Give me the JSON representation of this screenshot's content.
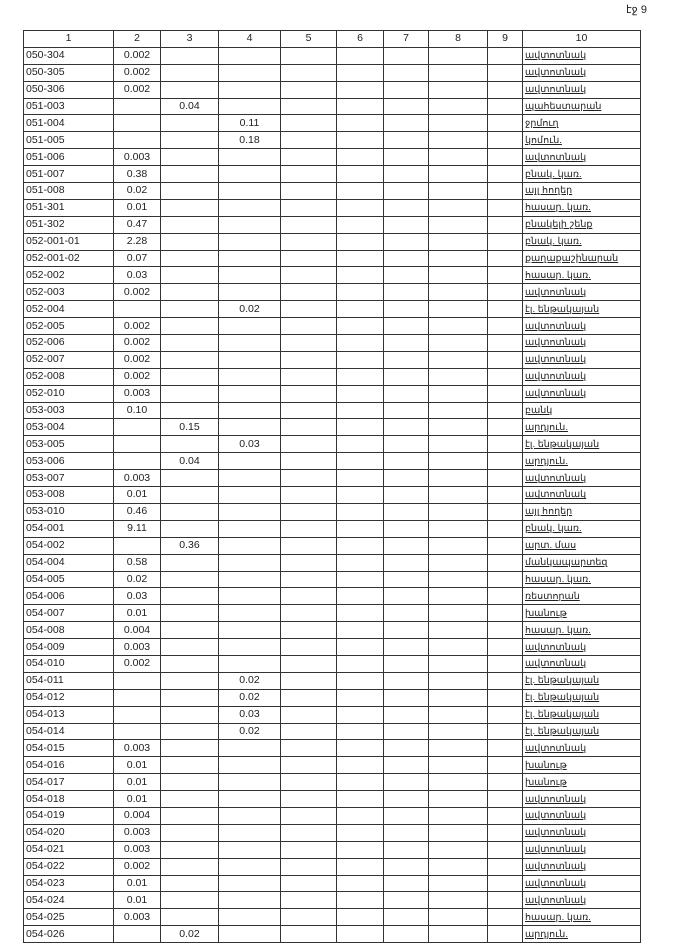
{
  "page_label": "էջ 9",
  "headers": [
    "1",
    "2",
    "3",
    "4",
    "5",
    "6",
    "7",
    "8",
    "9",
    "10"
  ],
  "rows": [
    {
      "code": "050-304",
      "c2": "0.002",
      "c3": "",
      "c4": "",
      "c10": "ավտոտնակ"
    },
    {
      "code": "050-305",
      "c2": "0.002",
      "c3": "",
      "c4": "",
      "c10": "ավտոտնակ"
    },
    {
      "code": "050-306",
      "c2": "0.002",
      "c3": "",
      "c4": "",
      "c10": "ավտոտնակ"
    },
    {
      "code": "051-003",
      "c2": "",
      "c3": "0.04",
      "c4": "",
      "c10": "պահեստարան"
    },
    {
      "code": "051-004",
      "c2": "",
      "c3": "",
      "c4": "0.11",
      "c10": "ջրմուղ"
    },
    {
      "code": "051-005",
      "c2": "",
      "c3": "",
      "c4": "0.18",
      "c10": "կոմուն."
    },
    {
      "code": "051-006",
      "c2": "0.003",
      "c3": "",
      "c4": "",
      "c10": "ավտոտնակ"
    },
    {
      "code": "051-007",
      "c2": "0.38",
      "c3": "",
      "c4": "",
      "c10": "բնակ. կառ."
    },
    {
      "code": "051-008",
      "c2": "0.02",
      "c3": "",
      "c4": "",
      "c10": "այլ հողեր"
    },
    {
      "code": "051-301",
      "c2": "0.01",
      "c3": "",
      "c4": "",
      "c10": "հասար. կառ."
    },
    {
      "code": "051-302",
      "c2": "0.47",
      "c3": "",
      "c4": "",
      "c10": "բնակելի շենք"
    },
    {
      "code": "052-001-01",
      "c2": "2.28",
      "c3": "",
      "c4": "",
      "c10": "բնակ. կառ."
    },
    {
      "code": "052-001-02",
      "c2": "0.07",
      "c3": "",
      "c4": "",
      "c10": "քաղաքաշինարան"
    },
    {
      "code": "052-002",
      "c2": "0.03",
      "c3": "",
      "c4": "",
      "c10": "հասար. կառ."
    },
    {
      "code": "052-003",
      "c2": "0.002",
      "c3": "",
      "c4": "",
      "c10": "ավտոտնակ"
    },
    {
      "code": "052-004",
      "c2": "",
      "c3": "",
      "c4": "0.02",
      "c10": "էլ. ենթակայան"
    },
    {
      "code": "052-005",
      "c2": "0.002",
      "c3": "",
      "c4": "",
      "c10": "ավտոտնակ"
    },
    {
      "code": "052-006",
      "c2": "0.002",
      "c3": "",
      "c4": "",
      "c10": "ավտոտնակ"
    },
    {
      "code": "052-007",
      "c2": "0.002",
      "c3": "",
      "c4": "",
      "c10": "ավտոտնակ"
    },
    {
      "code": "052-008",
      "c2": "0.002",
      "c3": "",
      "c4": "",
      "c10": "ավտոտնակ"
    },
    {
      "code": "052-010",
      "c2": "0.003",
      "c3": "",
      "c4": "",
      "c10": "ավտոտնակ"
    },
    {
      "code": "053-003",
      "c2": "0.10",
      "c3": "",
      "c4": "",
      "c10": "բանկ"
    },
    {
      "code": "053-004",
      "c2": "",
      "c3": "0.15",
      "c4": "",
      "c10": "արդյուն."
    },
    {
      "code": "053-005",
      "c2": "",
      "c3": "",
      "c4": "0.03",
      "c10": "էլ. ենթակայան"
    },
    {
      "code": "053-006",
      "c2": "",
      "c3": "0.04",
      "c4": "",
      "c10": "արդյուն."
    },
    {
      "code": "053-007",
      "c2": "0.003",
      "c3": "",
      "c4": "",
      "c10": "ավտոտնակ"
    },
    {
      "code": "053-008",
      "c2": "0.01",
      "c3": "",
      "c4": "",
      "c10": "ավտոտնակ"
    },
    {
      "code": "053-010",
      "c2": "0.46",
      "c3": "",
      "c4": "",
      "c10": "այլ հողեր"
    },
    {
      "code": "054-001",
      "c2": "9.11",
      "c3": "",
      "c4": "",
      "c10": "բնակ. կառ."
    },
    {
      "code": "054-002",
      "c2": "",
      "c3": "0.36",
      "c4": "",
      "c10": "արտ. մաս"
    },
    {
      "code": "054-004",
      "c2": "0.58",
      "c3": "",
      "c4": "",
      "c10": "մանկապարտեզ"
    },
    {
      "code": "054-005",
      "c2": "0.02",
      "c3": "",
      "c4": "",
      "c10": "հասար. կառ."
    },
    {
      "code": "054-006",
      "c2": "0.03",
      "c3": "",
      "c4": "",
      "c10": "ռեստորան"
    },
    {
      "code": "054-007",
      "c2": "0.01",
      "c3": "",
      "c4": "",
      "c10": "խանութ"
    },
    {
      "code": "054-008",
      "c2": "0.004",
      "c3": "",
      "c4": "",
      "c10": "հասար. կառ."
    },
    {
      "code": "054-009",
      "c2": "0.003",
      "c3": "",
      "c4": "",
      "c10": "ավտոտնակ"
    },
    {
      "code": "054-010",
      "c2": "0.002",
      "c3": "",
      "c4": "",
      "c10": "ավտոտնակ"
    },
    {
      "code": "054-011",
      "c2": "",
      "c3": "",
      "c4": "0.02",
      "c10": "էլ. ենթակայան"
    },
    {
      "code": "054-012",
      "c2": "",
      "c3": "",
      "c4": "0.02",
      "c10": "էլ. ենթակայան"
    },
    {
      "code": "054-013",
      "c2": "",
      "c3": "",
      "c4": "0.03",
      "c10": "էլ. ենթակայան"
    },
    {
      "code": "054-014",
      "c2": "",
      "c3": "",
      "c4": "0.02",
      "c10": "էլ. ենթակայան"
    },
    {
      "code": "054-015",
      "c2": "0.003",
      "c3": "",
      "c4": "",
      "c10": "ավտոտնակ"
    },
    {
      "code": "054-016",
      "c2": "0.01",
      "c3": "",
      "c4": "",
      "c10": "խանութ"
    },
    {
      "code": "054-017",
      "c2": "0.01",
      "c3": "",
      "c4": "",
      "c10": "խանութ"
    },
    {
      "code": "054-018",
      "c2": "0.01",
      "c3": "",
      "c4": "",
      "c10": "ավտոտնակ"
    },
    {
      "code": "054-019",
      "c2": "0.004",
      "c3": "",
      "c4": "",
      "c10": "ավտոտնակ"
    },
    {
      "code": "054-020",
      "c2": "0.003",
      "c3": "",
      "c4": "",
      "c10": "ավտոտնակ"
    },
    {
      "code": "054-021",
      "c2": "0.003",
      "c3": "",
      "c4": "",
      "c10": "ավտոտնակ"
    },
    {
      "code": "054-022",
      "c2": "0.002",
      "c3": "",
      "c4": "",
      "c10": "ավտոտնակ"
    },
    {
      "code": "054-023",
      "c2": "0.01",
      "c3": "",
      "c4": "",
      "c10": "ավտոտնակ"
    },
    {
      "code": "054-024",
      "c2": "0.01",
      "c3": "",
      "c4": "",
      "c10": "ավտոտնակ"
    },
    {
      "code": "054-025",
      "c2": "0.003",
      "c3": "",
      "c4": "",
      "c10": "հասար. կառ."
    },
    {
      "code": "054-026",
      "c2": "",
      "c3": "0.02",
      "c4": "",
      "c10": "արդյուն."
    }
  ]
}
